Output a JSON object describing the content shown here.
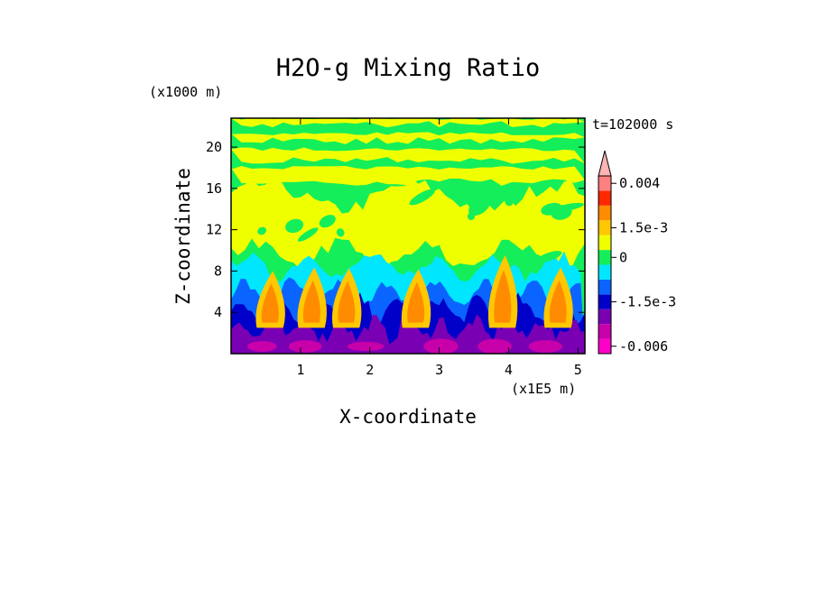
{
  "chart_data": {
    "type": "heatmap",
    "title": "H2O-g Mixing Ratio",
    "xlabel": "X-coordinate",
    "ylabel": "Z-coordinate",
    "x_unit": "(x1E5 m)",
    "y_unit": "(x1000 m)",
    "time_label": "t=102000 s",
    "xlim": [
      0.0,
      5.1
    ],
    "ylim": [
      0.0,
      22.8
    ],
    "x_ticks": [
      1,
      2,
      3,
      4,
      5
    ],
    "y_ticks": [
      4,
      8,
      12,
      16,
      20
    ],
    "colorbar": {
      "levels": [
        {
          "label": "-0.006",
          "color": "#ff00c8"
        },
        {
          "label": "",
          "color": "#c800aa"
        },
        {
          "label": "",
          "color": "#7a00b4"
        },
        {
          "label": "-1.5e-3",
          "color": "#0000c8"
        },
        {
          "label": "",
          "color": "#0a64ff"
        },
        {
          "label": "",
          "color": "#00e6ff"
        },
        {
          "label": "0",
          "color": "#14ee5a"
        },
        {
          "label": "",
          "color": "#f0ff00"
        },
        {
          "label": "1.5e-3",
          "color": "#ffc800"
        },
        {
          "label": "",
          "color": "#ff8c00"
        },
        {
          "label": "",
          "color": "#ff2800"
        },
        {
          "label": "0.004",
          "color": "#ff8080"
        },
        {
          "label": "",
          "color": "#ffb4b4"
        }
      ],
      "tick_labels": [
        "0.004",
        "1.5e-3",
        "0",
        "-1.5e-3",
        "-0.006"
      ]
    },
    "field_layers": [
      {
        "name": "upper-mixed",
        "colors": [
          "#14ee5a",
          "#f0ff00"
        ]
      },
      {
        "name": "mid-layer",
        "colors": [
          "#00e6ff",
          "#0a64ff"
        ]
      },
      {
        "name": "boundary-layer",
        "colors": [
          "#7a00b4",
          "#0000c8",
          "#c800aa"
        ]
      },
      {
        "name": "plumes",
        "colors": [
          "#ff8c00",
          "#ffc800"
        ]
      }
    ]
  }
}
